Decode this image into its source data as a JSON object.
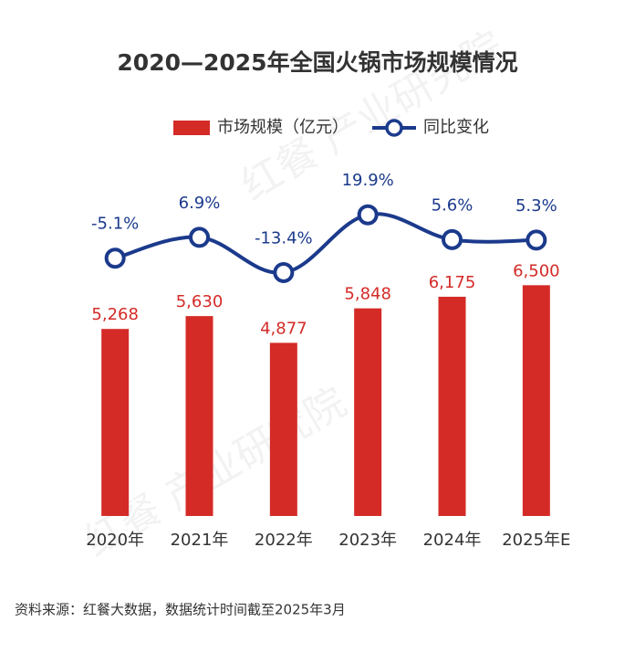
{
  "chart_data": {
    "type": "bar-line",
    "title": "2020—2025年全国火锅市场规模情况",
    "categories": [
      "2020年",
      "2021年",
      "2022年",
      "2023年",
      "2024年",
      "2025年E"
    ],
    "series": [
      {
        "name": "市场规模（亿元）",
        "color": "#d42b27",
        "type": "bar",
        "values": [
          5268,
          5630,
          4877,
          5848,
          6175,
          6500
        ],
        "value_labels": [
          "5,268",
          "5,630",
          "4,877",
          "5,848",
          "6,175",
          "6,500"
        ]
      },
      {
        "name": "同比变化",
        "color": "#1b3a8c",
        "type": "line",
        "axis": "y2",
        "values": [
          -5.1,
          6.9,
          -13.4,
          19.9,
          5.6,
          5.3
        ],
        "value_labels": [
          "-5.1%",
          "6.9%",
          "-13.4%",
          "19.9%",
          "5.6%",
          "5.3%"
        ]
      }
    ],
    "ylim": [
      0,
      8000
    ],
    "y2lim": [
      -20,
      30
    ],
    "grid": false,
    "legend": "top",
    "source": "资料来源：红餐大数据，数据统计时间截至2025年3月",
    "watermark": "红餐 产业研究院"
  }
}
